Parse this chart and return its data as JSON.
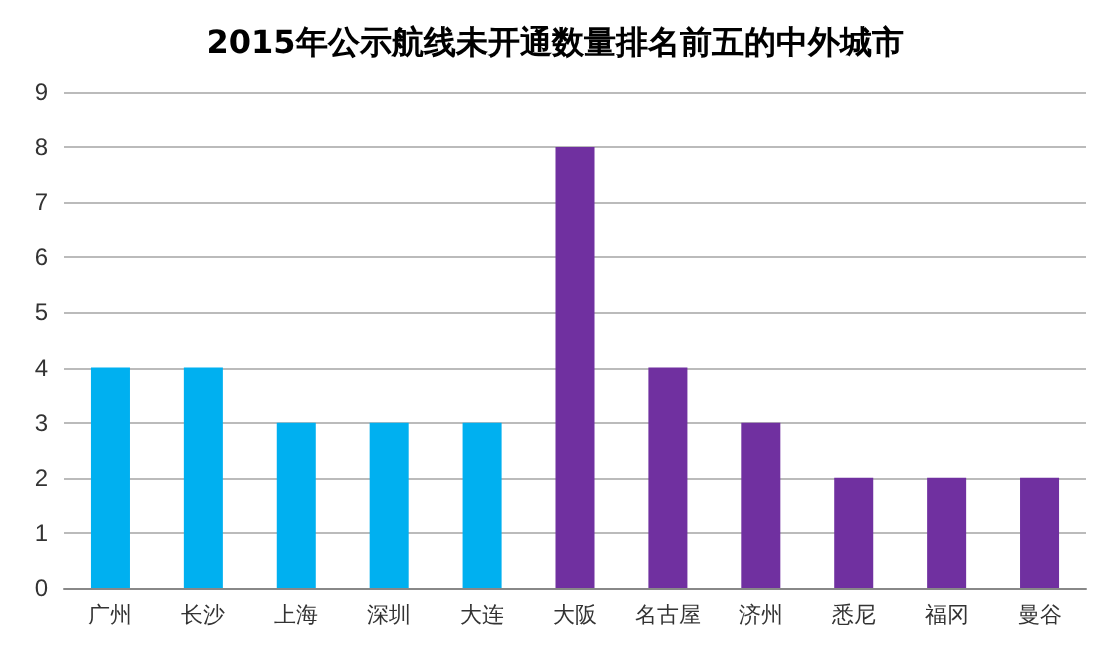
{
  "chart_data": {
    "type": "bar",
    "title": "2015年公示航线未开通数量排名前五的中外城市",
    "categories": [
      "广州",
      "长沙",
      "上海",
      "深圳",
      "大连",
      "大阪",
      "名古屋",
      "济州",
      "悉尼",
      "福冈",
      "曼谷"
    ],
    "values": [
      4,
      4,
      3,
      3,
      3,
      8,
      4,
      3,
      2,
      2,
      2
    ],
    "colors": [
      "#00b0f0",
      "#00b0f0",
      "#00b0f0",
      "#00b0f0",
      "#00b0f0",
      "#7030a0",
      "#7030a0",
      "#7030a0",
      "#7030a0",
      "#7030a0",
      "#7030a0"
    ],
    "ylim": [
      0,
      9
    ],
    "yticks": [
      0,
      1,
      2,
      3,
      4,
      5,
      6,
      7,
      8,
      9
    ],
    "grid": "y"
  }
}
